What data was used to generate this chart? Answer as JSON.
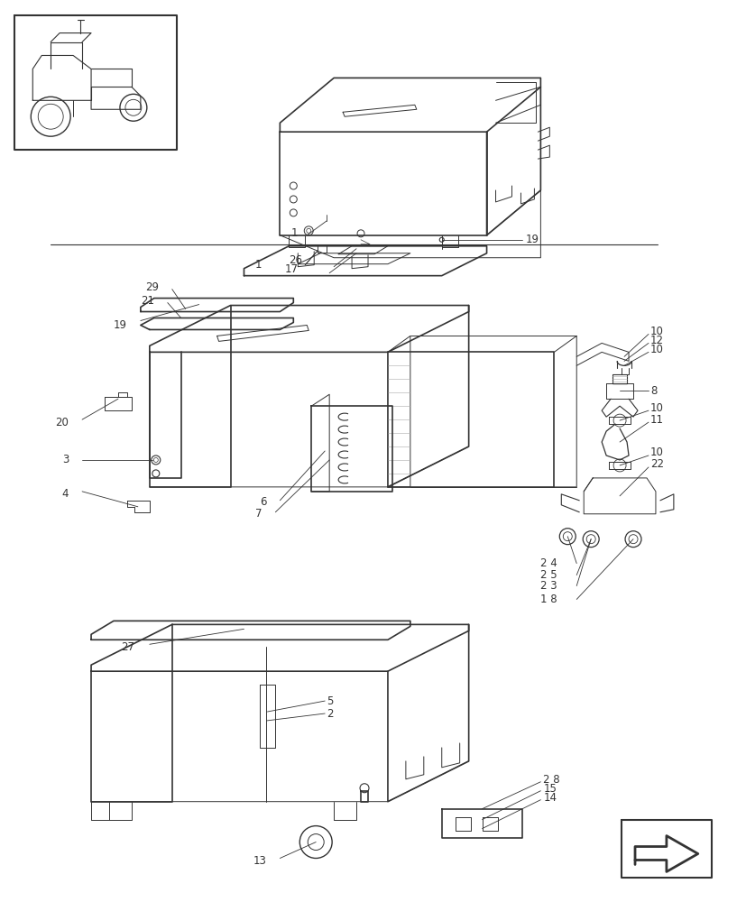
{
  "bg_color": "#ffffff",
  "lc": "#333333",
  "lc_light": "#aaaaaa",
  "lw_main": 1.2,
  "lw_thin": 0.7,
  "lw_leader": 0.6,
  "label_fs": 8.5,
  "label_color": "#333333",
  "figsize": [
    8.28,
    10.0
  ],
  "dpi": 100
}
